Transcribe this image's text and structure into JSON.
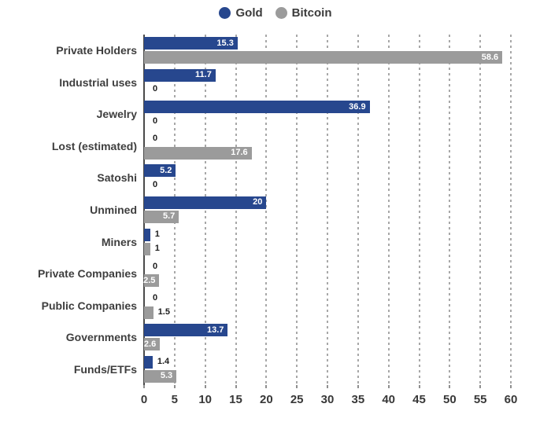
{
  "legend": {
    "items": [
      {
        "label": "Gold",
        "color": "#27478e",
        "marker": "circle"
      },
      {
        "label": "Bitcoin",
        "color": "#9b9b9b",
        "marker": "circle"
      }
    ]
  },
  "chart_data": {
    "type": "bar",
    "orientation": "horizontal",
    "title": "",
    "xlabel": "",
    "ylabel": "",
    "categories": [
      "Private Holders",
      "Industrial uses",
      "Jewelry",
      "Lost (estimated)",
      "Satoshi",
      "Unmined",
      "Miners",
      "Private Companies",
      "Public Companies",
      "Governments",
      "Funds/ETFs"
    ],
    "series": [
      {
        "name": "Gold",
        "color": "#27478e",
        "values": [
          15.3,
          11.7,
          36.9,
          0,
          5.2,
          20,
          1,
          0,
          0,
          13.7,
          1.4
        ],
        "labels": [
          "15.3",
          "11.7",
          "36.9",
          "0",
          "5.2",
          "20",
          "1",
          "0",
          "0",
          "13.7",
          "1.4"
        ]
      },
      {
        "name": "Bitcoin",
        "color": "#9b9b9b",
        "values": [
          58.6,
          0,
          0,
          17.6,
          0,
          5.7,
          1,
          2.5,
          1.5,
          2.6,
          5.3
        ],
        "labels": [
          "58.6",
          "0",
          "0",
          "17.6",
          "0",
          "5.7",
          "1",
          "2.5",
          "1.5",
          "2.6",
          "5.3"
        ]
      }
    ],
    "xlim": [
      0,
      60
    ],
    "xticks": [
      0,
      5,
      10,
      15,
      20,
      25,
      30,
      35,
      40,
      45,
      50,
      55,
      60
    ],
    "grid": "vertical-dashed",
    "legend_position": "top-center",
    "value_label_inside_threshold": 2.5,
    "colors": {
      "grid_line": "#a8a8a8",
      "axis_line": "#4a4a4a",
      "category_text": "#3e3e3e",
      "tick_text": "#383838",
      "value_inside_text": "#ffffff",
      "value_outside_text": "#1c1c1c",
      "background": "#ffffff"
    }
  }
}
